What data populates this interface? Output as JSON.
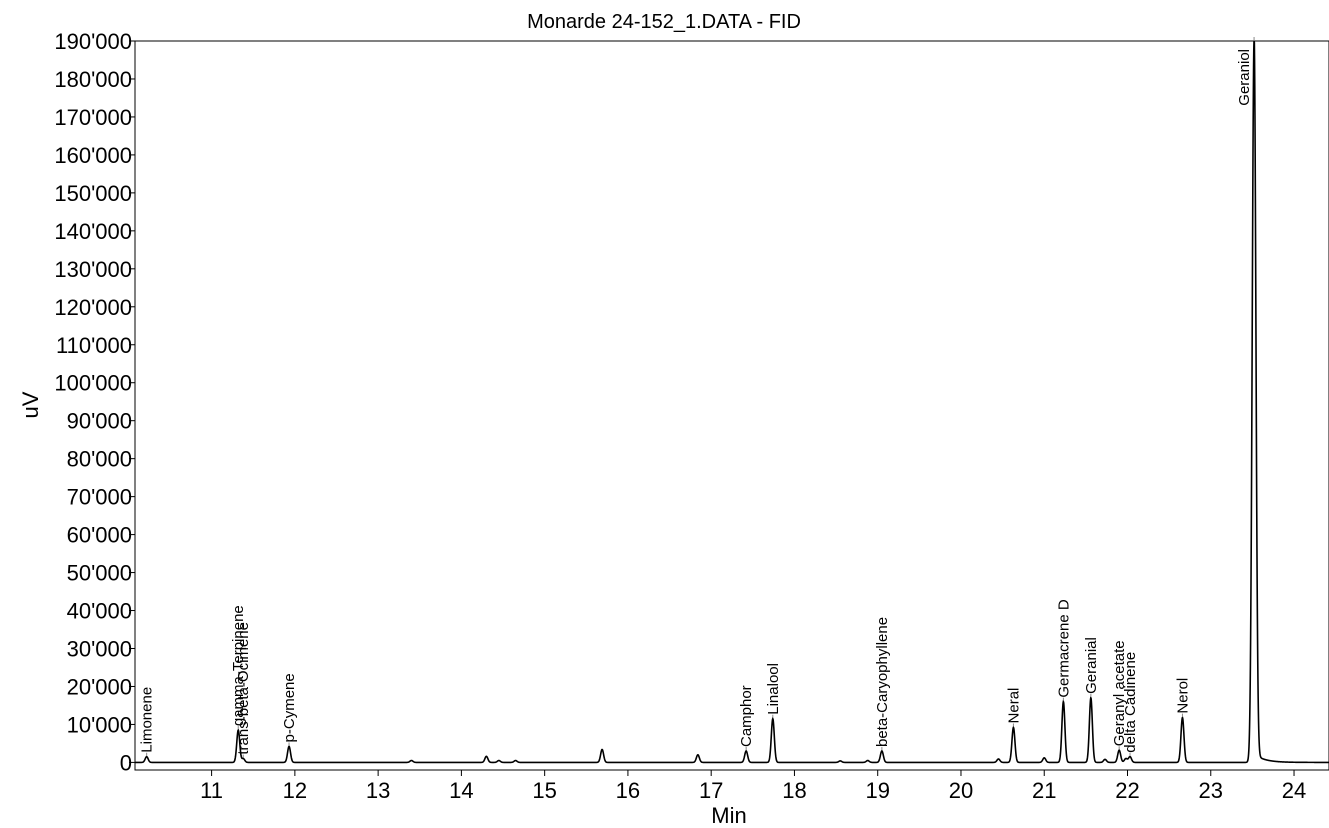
{
  "chart_data": {
    "type": "line",
    "title": "Monarde 24-152_1.DATA - FID",
    "xlabel": "Min",
    "ylabel": "uV",
    "xlim": [
      10.08,
      24.42
    ],
    "ylim": [
      -2000,
      190000
    ],
    "x_ticks": [
      11,
      12,
      13,
      14,
      15,
      16,
      17,
      18,
      19,
      20,
      21,
      22,
      23,
      24
    ],
    "y_ticks": [
      0,
      10000,
      20000,
      30000,
      40000,
      50000,
      60000,
      70000,
      80000,
      90000,
      100000,
      110000,
      120000,
      130000,
      140000,
      150000,
      160000,
      170000,
      180000,
      190000
    ],
    "y_tick_labels": [
      "0",
      "10'000",
      "20'000",
      "30'000",
      "40'000",
      "50'000",
      "60'000",
      "70'000",
      "80'000",
      "90'000",
      "100'000",
      "110'000",
      "120'000",
      "130'000",
      "140'000",
      "150'000",
      "160'000",
      "170'000",
      "180'000",
      "190'000"
    ],
    "grid": false,
    "line_color": "#000000",
    "labeled_peaks": [
      {
        "name": "Limonene",
        "x": 10.22,
        "y": 1500
      },
      {
        "name": "gamma-Terpinene",
        "x": 11.32,
        "y": 8500
      },
      {
        "name": "trans-beta-Ocimene",
        "x": 11.38,
        "y": 1000
      },
      {
        "name": "p-Cymene",
        "x": 11.93,
        "y": 4200
      },
      {
        "name": "Camphor",
        "x": 17.42,
        "y": 3000
      },
      {
        "name": "Linalool",
        "x": 17.74,
        "y": 11500
      },
      {
        "name": "beta-Caryophyllene",
        "x": 19.05,
        "y": 3000
      },
      {
        "name": "Neral",
        "x": 20.63,
        "y": 9200
      },
      {
        "name": "Germacrene D",
        "x": 21.23,
        "y": 16000
      },
      {
        "name": "Geranial",
        "x": 21.56,
        "y": 17000
      },
      {
        "name": "Geranyl acetate",
        "x": 21.9,
        "y": 3200
      },
      {
        "name": "delta Cadinene",
        "x": 22.03,
        "y": 1500
      },
      {
        "name": "Nerol",
        "x": 22.66,
        "y": 11800
      },
      {
        "name": "Geraniol",
        "x": 23.52,
        "y": 190000
      }
    ],
    "minor_peaks": [
      {
        "x": 13.4,
        "y": 500
      },
      {
        "x": 14.3,
        "y": 1600
      },
      {
        "x": 14.45,
        "y": 500
      },
      {
        "x": 14.65,
        "y": 500
      },
      {
        "x": 15.69,
        "y": 3400
      },
      {
        "x": 16.84,
        "y": 2000
      },
      {
        "x": 18.55,
        "y": 400
      },
      {
        "x": 18.88,
        "y": 500
      },
      {
        "x": 20.45,
        "y": 900
      },
      {
        "x": 21.0,
        "y": 1200
      },
      {
        "x": 21.73,
        "y": 800
      },
      {
        "x": 21.98,
        "y": 1000
      }
    ]
  }
}
